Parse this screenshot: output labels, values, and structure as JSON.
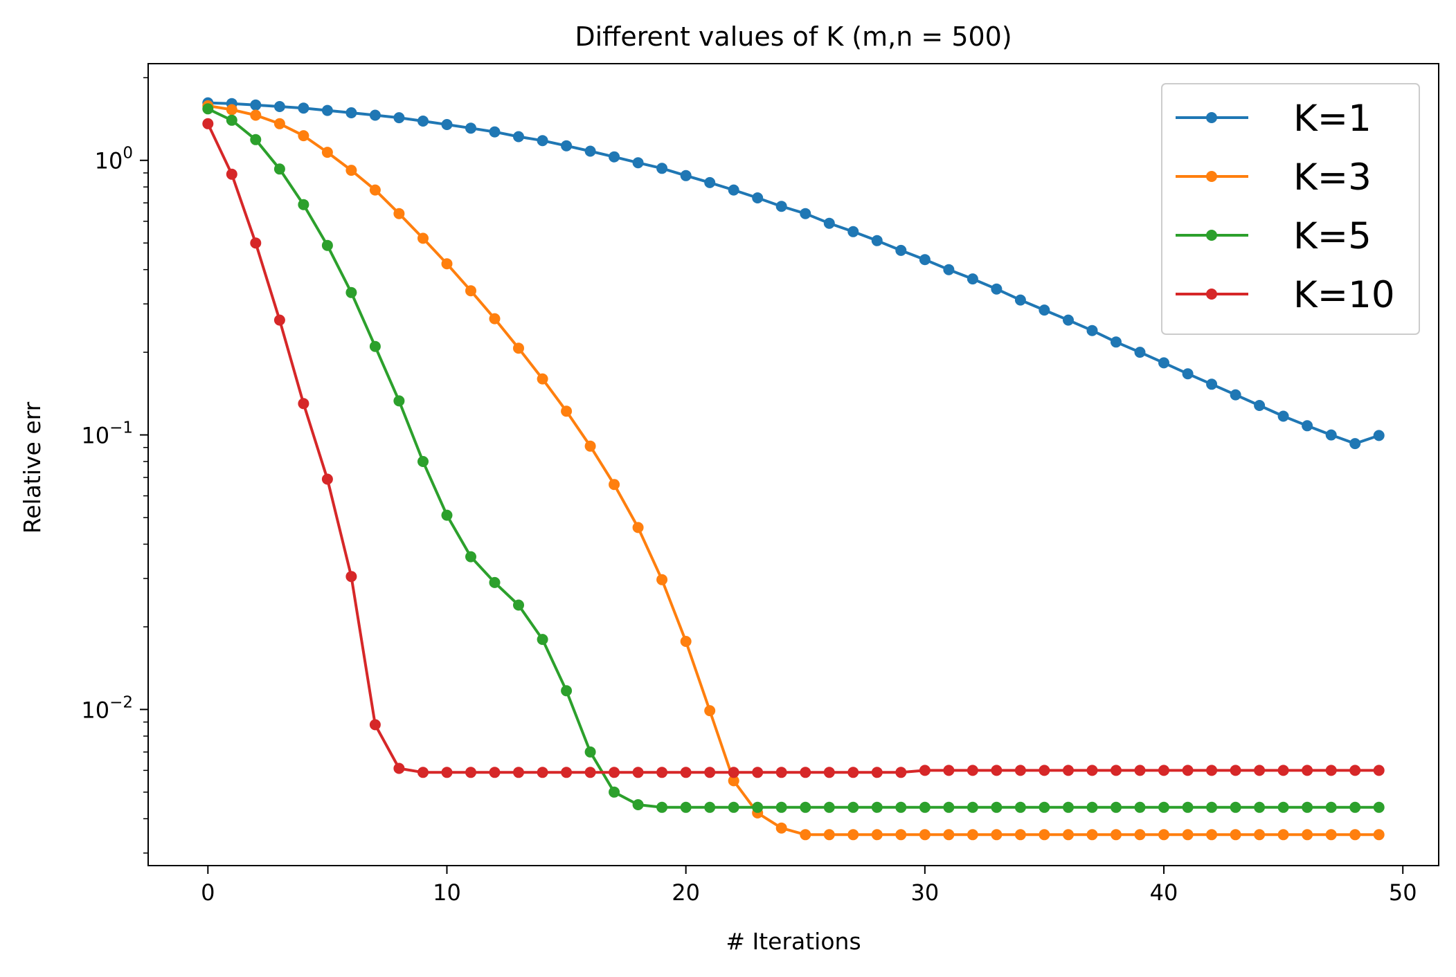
{
  "chart_data": {
    "type": "line",
    "title": "Different values of K (m,n = 500)",
    "xlabel": "# Iterations",
    "ylabel": "Relative err",
    "yscale": "log",
    "xlim": [
      -2.5,
      51.5
    ],
    "ylim": [
      0.0027,
      2.25
    ],
    "xticks": [
      0,
      10,
      20,
      30,
      40,
      50
    ],
    "xtick_labels": [
      "0",
      "10",
      "20",
      "30",
      "40",
      "50"
    ],
    "yticks": [
      0.01,
      0.1,
      1
    ],
    "ytick_labels": [
      {
        "base": "10",
        "exp": "−2"
      },
      {
        "base": "10",
        "exp": "−1"
      },
      {
        "base": "10",
        "exp": "0"
      }
    ],
    "grid": false,
    "legend_position": "upper right",
    "marker": "circle",
    "x": [
      0,
      1,
      2,
      3,
      4,
      5,
      6,
      7,
      8,
      9,
      10,
      11,
      12,
      13,
      14,
      15,
      16,
      17,
      18,
      19,
      20,
      21,
      22,
      23,
      24,
      25,
      26,
      27,
      28,
      29,
      30,
      31,
      32,
      33,
      34,
      35,
      36,
      37,
      38,
      39,
      40,
      41,
      42,
      43,
      44,
      45,
      46,
      47,
      48,
      49
    ],
    "series": [
      {
        "name": "K=1",
        "color": "#1f77b4",
        "values": [
          1.62,
          1.61,
          1.59,
          1.57,
          1.55,
          1.52,
          1.49,
          1.46,
          1.43,
          1.39,
          1.35,
          1.31,
          1.27,
          1.22,
          1.18,
          1.13,
          1.08,
          1.03,
          0.98,
          0.935,
          0.88,
          0.83,
          0.78,
          0.73,
          0.68,
          0.64,
          0.59,
          0.55,
          0.51,
          0.47,
          0.435,
          0.4,
          0.37,
          0.34,
          0.31,
          0.285,
          0.262,
          0.24,
          0.218,
          0.2,
          0.183,
          0.167,
          0.153,
          0.14,
          0.128,
          0.117,
          0.108,
          0.1,
          0.093,
          0.0995
        ]
      },
      {
        "name": "K=3",
        "color": "#ff7f0e",
        "values": [
          1.58,
          1.53,
          1.46,
          1.36,
          1.23,
          1.07,
          0.92,
          0.78,
          0.64,
          0.52,
          0.42,
          0.335,
          0.265,
          0.207,
          0.16,
          0.122,
          0.091,
          0.066,
          0.046,
          0.0297,
          0.0177,
          0.0099,
          0.0055,
          0.0042,
          0.0037,
          0.0035,
          0.0035,
          0.0035,
          0.0035,
          0.0035,
          0.0035,
          0.0035,
          0.0035,
          0.0035,
          0.0035,
          0.0035,
          0.0035,
          0.0035,
          0.0035,
          0.0035,
          0.0035,
          0.0035,
          0.0035,
          0.0035,
          0.0035,
          0.0035,
          0.0035,
          0.0035,
          0.0035,
          0.0035
        ]
      },
      {
        "name": "K=5",
        "color": "#2ca02c",
        "values": [
          1.54,
          1.4,
          1.19,
          0.93,
          0.69,
          0.49,
          0.33,
          0.21,
          0.133,
          0.08,
          0.051,
          0.036,
          0.029,
          0.024,
          0.018,
          0.0117,
          0.007,
          0.005,
          0.0045,
          0.0044,
          0.0044,
          0.0044,
          0.0044,
          0.0044,
          0.0044,
          0.0044,
          0.0044,
          0.0044,
          0.0044,
          0.0044,
          0.0044,
          0.0044,
          0.0044,
          0.0044,
          0.0044,
          0.0044,
          0.0044,
          0.0044,
          0.0044,
          0.0044,
          0.0044,
          0.0044,
          0.0044,
          0.0044,
          0.0044,
          0.0044,
          0.0044,
          0.0044,
          0.0044,
          0.0044
        ]
      },
      {
        "name": "K=10",
        "color": "#d62728",
        "values": [
          1.36,
          0.89,
          0.5,
          0.262,
          0.13,
          0.069,
          0.0305,
          0.0088,
          0.0061,
          0.0059,
          0.0059,
          0.0059,
          0.0059,
          0.0059,
          0.0059,
          0.0059,
          0.0059,
          0.0059,
          0.0059,
          0.0059,
          0.0059,
          0.0059,
          0.0059,
          0.0059,
          0.0059,
          0.0059,
          0.0059,
          0.0059,
          0.0059,
          0.0059,
          0.006,
          0.006,
          0.006,
          0.006,
          0.006,
          0.006,
          0.006,
          0.006,
          0.006,
          0.006,
          0.006,
          0.006,
          0.006,
          0.006,
          0.006,
          0.006,
          0.006,
          0.006,
          0.006,
          0.006
        ]
      }
    ]
  }
}
